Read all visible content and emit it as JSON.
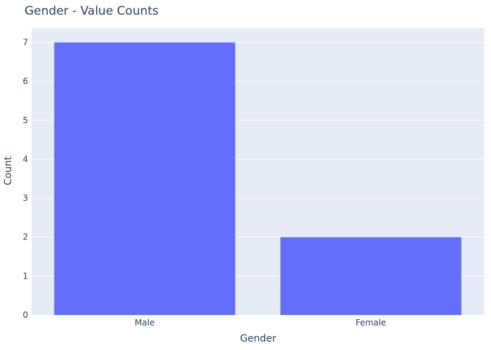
{
  "chart_data": {
    "type": "bar",
    "title": "Gender - Value Counts",
    "xlabel": "Gender",
    "ylabel": "Count",
    "categories": [
      "Male",
      "Female"
    ],
    "values": [
      7,
      2
    ],
    "ylim": [
      0,
      7.37
    ],
    "yticks": [
      0,
      1,
      2,
      3,
      4,
      5,
      6,
      7
    ],
    "grid": true,
    "legend": "none",
    "colors": {
      "bar": "#636efa",
      "plot_background": "#e5ecf6",
      "gridline": "#ffffff",
      "text": "#2a3f5f"
    }
  }
}
